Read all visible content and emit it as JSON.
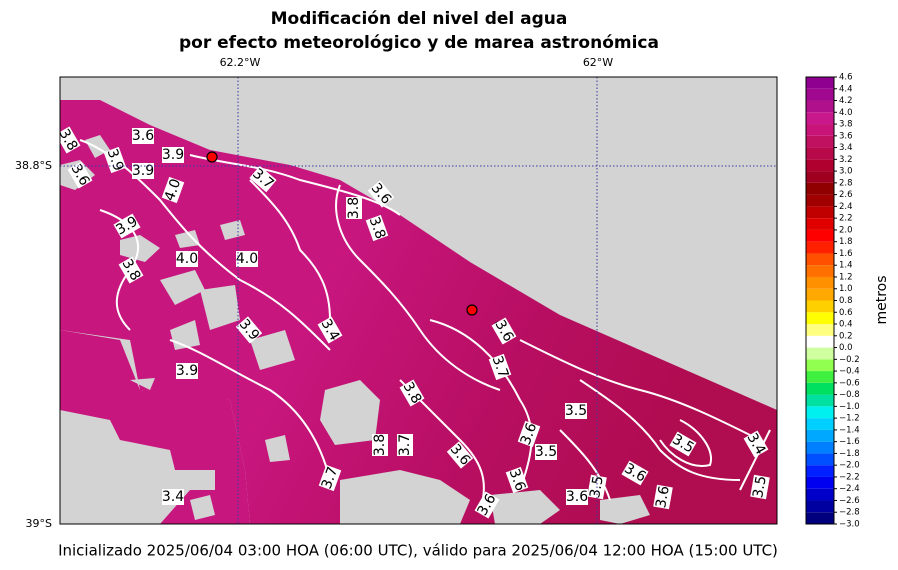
{
  "chart_data": {
    "type": "contour_map",
    "title": "Modificación del nivel del agua",
    "subtitle": "por efecto meteorológico y de marea astronómica",
    "x_labels": [
      "62.2°W",
      "62°W"
    ],
    "y_labels": [
      "38.8°S",
      "39°S"
    ],
    "colorbar_label": "metros",
    "footer": "Inicializado 2025/06/04 03:00 HOA (06:00 UTC), válido para 2025/06/04 12:00 HOA (15:00 UTC)",
    "clim": [
      -3.0,
      4.6
    ],
    "cticks": [
      {
        "value": -3.0,
        "label": "−3.0"
      },
      {
        "value": -2.8,
        "label": "−2.8"
      },
      {
        "value": -2.6,
        "label": "−2.6"
      },
      {
        "value": -2.4,
        "label": "−2.4"
      },
      {
        "value": -2.2,
        "label": "−2.2"
      },
      {
        "value": -2.0,
        "label": "−2.0"
      },
      {
        "value": -1.8,
        "label": "−1.8"
      },
      {
        "value": -1.6,
        "label": "−1.6"
      },
      {
        "value": -1.4,
        "label": "−1.4"
      },
      {
        "value": -1.2,
        "label": "−1.2"
      },
      {
        "value": -1.0,
        "label": "−1.0"
      },
      {
        "value": -0.8,
        "label": "−0.8"
      },
      {
        "value": -0.6,
        "label": "−0.6"
      },
      {
        "value": -0.4,
        "label": "−0.4"
      },
      {
        "value": -0.2,
        "label": "−0.2"
      },
      {
        "value": 0.0,
        "label": "0.0"
      },
      0.2,
      0.4,
      0.6,
      0.8,
      {
        "value": 1.0,
        "label": "1.0"
      },
      1.2,
      1.4,
      1.6,
      1.8,
      {
        "value": 2.0,
        "label": "2.0"
      },
      2.2,
      2.4,
      2.6,
      2.8,
      {
        "value": 3.0,
        "label": "3.0"
      },
      3.2,
      3.4,
      3.6,
      3.8,
      {
        "value": 4.0,
        "label": "4.0"
      },
      4.2,
      4.4,
      4.6
    ],
    "colors": [
      "#00007f",
      "#0000a0",
      "#0000c8",
      "#0000f0",
      "#0020ff",
      "#0050ff",
      "#0080ff",
      "#00a8ff",
      "#00d0ff",
      "#00f0f0",
      "#00e0a0",
      "#00e060",
      "#40f040",
      "#90ff50",
      "#d0ffa0",
      "#ffffff",
      "#ffff80",
      "#ffff00",
      "#ffd000",
      "#ffa800",
      "#ff9000",
      "#ff7000",
      "#ff5000",
      "#ff2000",
      "#ff0000",
      "#e00000",
      "#c00000",
      "#a00000",
      "#900000",
      "#a00020",
      "#b00030",
      "#b80a4a",
      "#c01060",
      "#c81478",
      "#c8188c",
      "#b0108c",
      "#a00890",
      "#900090"
    ],
    "contour_labels": [
      3.8,
      3.6,
      3.9,
      3.9,
      3.9,
      3.6,
      3.7,
      3.6,
      {
        "value": 4.0,
        "label": "4.0"
      },
      3.8,
      3.8,
      3.9,
      {
        "value": 4.0,
        "label": "4.0"
      },
      {
        "value": 4.0,
        "label": "4.0"
      },
      3.8,
      3.4,
      3.6,
      3.9,
      3.9,
      3.7,
      3.8,
      3.5,
      3.6,
      3.5,
      3.4,
      3.5,
      3.8,
      3.7,
      3.6,
      3.6,
      3.7,
      3.4,
      3.6,
      3.5,
      3.6,
      3.5,
      3.6,
      3.6
    ]
  }
}
